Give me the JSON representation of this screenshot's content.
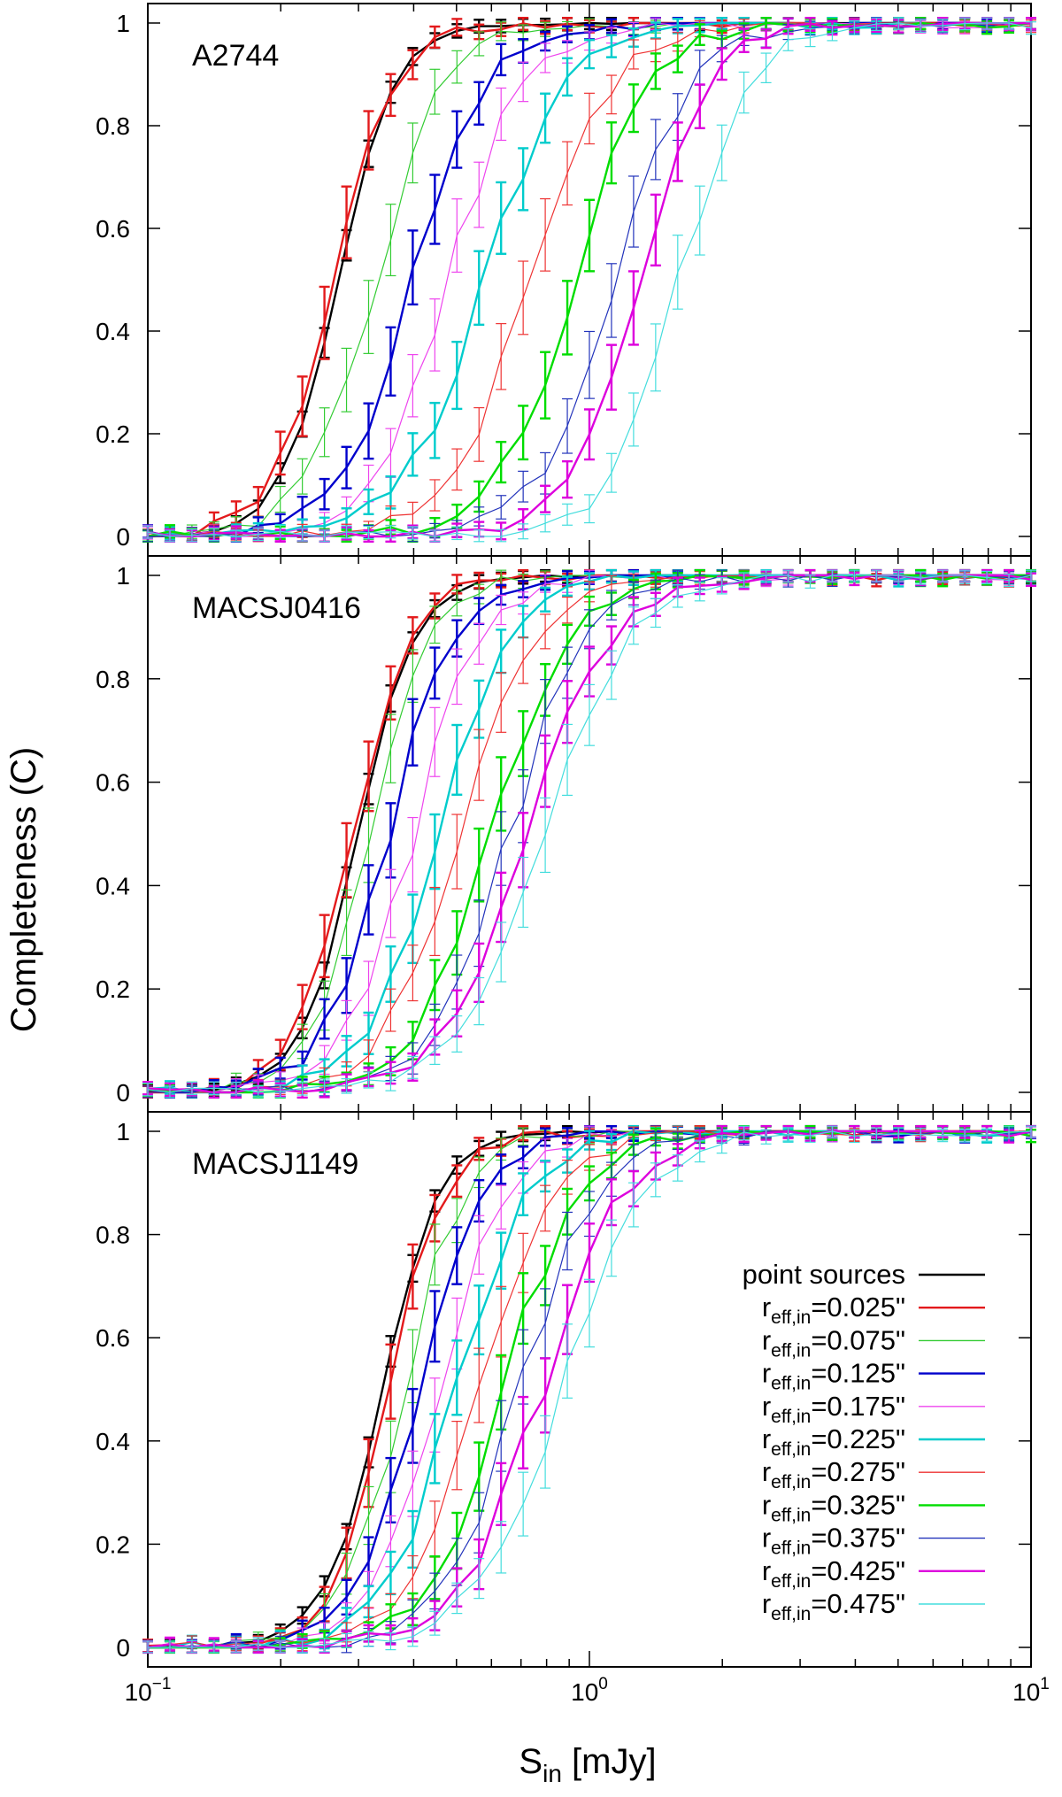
{
  "chart_data": {
    "type": "line",
    "title": "",
    "xlabel": "S",
    "xlabel_sub": "in",
    "xlabel_unit": " [mJy]",
    "ylabel": "Completeness (C)",
    "xscale": "log",
    "xlim": [
      0.1,
      10
    ],
    "ylim": [
      0,
      1
    ],
    "x_ticks": [
      {
        "value": 0.1,
        "base": "10",
        "exp": "−1"
      },
      {
        "value": 1,
        "base": "10",
        "exp": "0"
      },
      {
        "value": 10,
        "base": "10",
        "exp": "1"
      }
    ],
    "y_ticks": [
      "0",
      "0.2",
      "0.4",
      "0.6",
      "0.8",
      "1"
    ],
    "legend": {
      "position": "bottom-right of third panel",
      "entries": [
        {
          "label": "point sources",
          "prefix": "",
          "sub": "",
          "value": "",
          "color": "#000000"
        },
        {
          "label": "r_eff,in=0.025\"",
          "prefix": "r",
          "sub": "eff,in",
          "value": "=0.025\"",
          "color": "#e31a1c"
        },
        {
          "label": "r_eff,in=0.075\"",
          "prefix": "r",
          "sub": "eff,in",
          "value": "=0.075\"",
          "color": "#33cc33"
        },
        {
          "label": "r_eff,in=0.125\"",
          "prefix": "r",
          "sub": "eff,in",
          "value": "=0.125\"",
          "color": "#0000cc"
        },
        {
          "label": "r_eff,in=0.175\"",
          "prefix": "r",
          "sub": "eff,in",
          "value": "=0.175\"",
          "color": "#ee44ee"
        },
        {
          "label": "r_eff,in=0.225\"",
          "prefix": "r",
          "sub": "eff,in",
          "value": "=0.225\"",
          "color": "#00cccc"
        },
        {
          "label": "r_eff,in=0.275\"",
          "prefix": "r",
          "sub": "eff,in",
          "value": "=0.275\"",
          "color": "#ee3333"
        },
        {
          "label": "r_eff,in=0.325\"",
          "prefix": "r",
          "sub": "eff,in",
          "value": "=0.325\"",
          "color": "#00dd00"
        },
        {
          "label": "r_eff,in=0.375\"",
          "prefix": "r",
          "sub": "eff,in",
          "value": "=0.375\"",
          "color": "#2233bb"
        },
        {
          "label": "r_eff,in=0.425\"",
          "prefix": "r",
          "sub": "eff,in",
          "value": "=0.425\"",
          "color": "#dd00dd"
        },
        {
          "label": "r_eff,in=0.475\"",
          "prefix": "r",
          "sub": "eff,in",
          "value": "=0.475\"",
          "color": "#44dddd"
        }
      ]
    },
    "series_style": {
      "colors": [
        "#000000",
        "#e31a1c",
        "#33cc33",
        "#0000cc",
        "#ee44ee",
        "#00cccc",
        "#ee3333",
        "#00dd00",
        "#2233bb",
        "#dd00dd",
        "#44dddd"
      ],
      "thick": [
        true,
        true,
        false,
        true,
        false,
        true,
        false,
        true,
        false,
        true,
        false
      ]
    },
    "panels": [
      {
        "name": "A2744",
        "curves": [
          {
            "name": "point sources",
            "s50": 0.27,
            "w": 0.15
          },
          {
            "name": "r_eff,in=0.025\"",
            "s50": 0.265,
            "w": 0.16
          },
          {
            "name": "r_eff,in=0.075\"",
            "s50": 0.33,
            "w": 0.18
          },
          {
            "name": "r_eff,in=0.125\"",
            "s50": 0.4,
            "w": 0.19
          },
          {
            "name": "r_eff,in=0.175\"",
            "s50": 0.48,
            "w": 0.2
          },
          {
            "name": "r_eff,in=0.225\"",
            "s50": 0.58,
            "w": 0.21
          },
          {
            "name": "r_eff,in=0.275\"",
            "s50": 0.74,
            "w": 0.21
          },
          {
            "name": "r_eff,in=0.325\"",
            "s50": 0.92,
            "w": 0.2
          },
          {
            "name": "r_eff,in=0.375\"",
            "s50": 1.15,
            "w": 0.2
          },
          {
            "name": "r_eff,in=0.425\"",
            "s50": 1.3,
            "w": 0.18
          },
          {
            "name": "r_eff,in=0.475\"",
            "s50": 1.6,
            "w": 0.18
          }
        ]
      },
      {
        "name": "MACSJ0416",
        "curves": [
          {
            "name": "point sources",
            "s50": 0.3,
            "w": 0.15
          },
          {
            "name": "r_eff,in=0.025\"",
            "s50": 0.29,
            "w": 0.15
          },
          {
            "name": "r_eff,in=0.075\"",
            "s50": 0.32,
            "w": 0.16
          },
          {
            "name": "r_eff,in=0.125\"",
            "s50": 0.35,
            "w": 0.17
          },
          {
            "name": "r_eff,in=0.175\"",
            "s50": 0.4,
            "w": 0.18
          },
          {
            "name": "r_eff,in=0.225\"",
            "s50": 0.45,
            "w": 0.19
          },
          {
            "name": "r_eff,in=0.275\"",
            "s50": 0.51,
            "w": 0.2
          },
          {
            "name": "r_eff,in=0.325\"",
            "s50": 0.6,
            "w": 0.2
          },
          {
            "name": "r_eff,in=0.375\"",
            "s50": 0.66,
            "w": 0.21
          },
          {
            "name": "r_eff,in=0.425\"",
            "s50": 0.72,
            "w": 0.22
          },
          {
            "name": "r_eff,in=0.475\"",
            "s50": 0.8,
            "w": 0.22
          }
        ]
      },
      {
        "name": "MACSJ1149",
        "curves": [
          {
            "name": "point sources",
            "s50": 0.34,
            "w": 0.15
          },
          {
            "name": "r_eff,in=0.025\"",
            "s50": 0.35,
            "w": 0.15
          },
          {
            "name": "r_eff,in=0.075\"",
            "s50": 0.38,
            "w": 0.16
          },
          {
            "name": "r_eff,in=0.125\"",
            "s50": 0.41,
            "w": 0.17
          },
          {
            "name": "r_eff,in=0.175\"",
            "s50": 0.46,
            "w": 0.18
          },
          {
            "name": "r_eff,in=0.225\"",
            "s50": 0.5,
            "w": 0.19
          },
          {
            "name": "r_eff,in=0.275\"",
            "s50": 0.57,
            "w": 0.2
          },
          {
            "name": "r_eff,in=0.325\"",
            "s50": 0.64,
            "w": 0.2
          },
          {
            "name": "r_eff,in=0.375\"",
            "s50": 0.7,
            "w": 0.21
          },
          {
            "name": "r_eff,in=0.425\"",
            "s50": 0.78,
            "w": 0.22
          },
          {
            "name": "r_eff,in=0.475\"",
            "s50": 0.86,
            "w": 0.22
          }
        ]
      }
    ]
  }
}
